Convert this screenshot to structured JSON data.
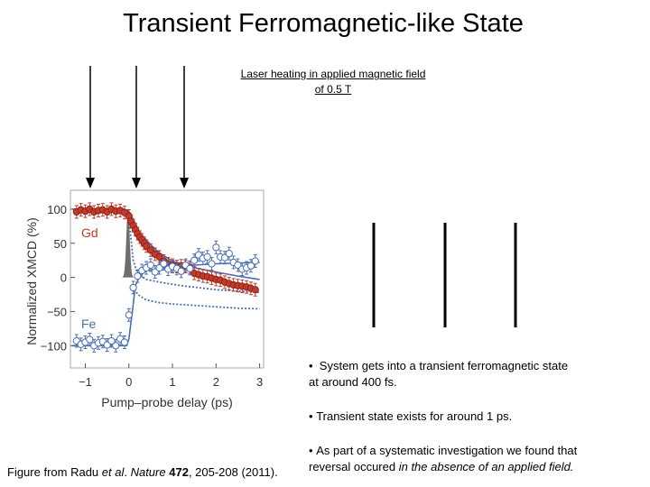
{
  "slide": {
    "title": "Transient Ferromagnetic-like State",
    "subnote_line1": "Laser heating in applied magnetic field",
    "subnote_line2": "of 0.5 T",
    "bullets": [
      {
        "marker": "•",
        "text_line1": "System gets into a transient ferromagnetic state",
        "text_line2": "at around 400 fs."
      },
      {
        "marker": "•",
        "text_line1": "Transient state exists for around 1 ps.",
        "text_line2": ""
      },
      {
        "marker": "•",
        "text_line1": "As part of a systematic investigation we found that",
        "text_line2_pre": "reversal occured ",
        "text_line2_em": "in the absence of an applied field."
      }
    ],
    "caption": {
      "pre": "Figure from Radu ",
      "etal": "et al",
      "mid": ". ",
      "journal": "Nature",
      "sp": " ",
      "volume": "472",
      "post": ", 205-208 (2011)."
    }
  },
  "chart_data": {
    "type": "scatter",
    "title": "",
    "xlabel": "Pump–probe delay (ps)",
    "ylabel": "Normalized XMCD (%)",
    "xlim": [
      -1.3,
      3.05
    ],
    "ylim": [
      -130,
      125
    ],
    "x_ticks": [
      -1,
      0,
      1,
      2,
      3
    ],
    "y_ticks": [
      100,
      50,
      0,
      -50,
      -100
    ],
    "x_tick_labels": [
      "−1",
      "0",
      "1",
      "2",
      "3"
    ],
    "y_tick_labels": [
      "100",
      "50",
      "0",
      "−50",
      "−100"
    ],
    "series_labels": [
      {
        "name": "Gd",
        "color": "#c43a2a"
      },
      {
        "name": "Fe",
        "color": "#4a6fb0"
      }
    ],
    "series": [
      {
        "name": "Gd",
        "color": "#c43a2a",
        "marker": "filled-circle",
        "points": [
          [
            -1.2,
            96
          ],
          [
            -1.1,
            99
          ],
          [
            -1.0,
            97
          ],
          [
            -0.9,
            100
          ],
          [
            -0.8,
            96
          ],
          [
            -0.7,
            98
          ],
          [
            -0.6,
            99
          ],
          [
            -0.5,
            96
          ],
          [
            -0.4,
            100
          ],
          [
            -0.3,
            97
          ],
          [
            -0.2,
            98
          ],
          [
            -0.1,
            95
          ],
          [
            0.0,
            90
          ],
          [
            0.05,
            82
          ],
          [
            0.1,
            76
          ],
          [
            0.15,
            70
          ],
          [
            0.2,
            64
          ],
          [
            0.25,
            59
          ],
          [
            0.3,
            55
          ],
          [
            0.35,
            50
          ],
          [
            0.4,
            46
          ],
          [
            0.5,
            40
          ],
          [
            0.6,
            34
          ],
          [
            0.7,
            30
          ],
          [
            0.8,
            24
          ],
          [
            0.9,
            20
          ],
          [
            1.0,
            18
          ],
          [
            1.1,
            16
          ],
          [
            1.2,
            17
          ],
          [
            1.3,
            16
          ],
          [
            1.4,
            15
          ],
          [
            1.5,
            6
          ],
          [
            1.6,
            4
          ],
          [
            1.7,
            2
          ],
          [
            1.8,
            1
          ],
          [
            1.9,
            -1
          ],
          [
            2.0,
            -3
          ],
          [
            2.1,
            -4
          ],
          [
            2.2,
            -7
          ],
          [
            2.3,
            -9
          ],
          [
            2.4,
            -11
          ],
          [
            2.5,
            -12
          ],
          [
            2.6,
            -13
          ],
          [
            2.7,
            -14
          ],
          [
            2.8,
            -16
          ],
          [
            2.9,
            -18
          ]
        ]
      },
      {
        "name": "Fe",
        "color": "#4a6fb0",
        "marker": "open-circle",
        "points": [
          [
            -1.2,
            -93
          ],
          [
            -1.1,
            -98
          ],
          [
            -1.0,
            -95
          ],
          [
            -0.9,
            -91
          ],
          [
            -0.8,
            -100
          ],
          [
            -0.7,
            -96
          ],
          [
            -0.6,
            -94
          ],
          [
            -0.5,
            -99
          ],
          [
            -0.4,
            -93
          ],
          [
            -0.3,
            -100
          ],
          [
            -0.2,
            -90
          ],
          [
            -0.1,
            -95
          ],
          [
            0.0,
            -55
          ],
          [
            0.1,
            -15
          ],
          [
            0.2,
            2
          ],
          [
            0.3,
            10
          ],
          [
            0.4,
            14
          ],
          [
            0.5,
            18
          ],
          [
            0.6,
            8
          ],
          [
            0.7,
            14
          ],
          [
            0.8,
            20
          ],
          [
            0.9,
            12
          ],
          [
            1.0,
            16
          ],
          [
            1.1,
            13
          ],
          [
            1.2,
            9
          ],
          [
            1.3,
            18
          ],
          [
            1.4,
            13
          ],
          [
            1.5,
            25
          ],
          [
            1.6,
            33
          ],
          [
            1.7,
            28
          ],
          [
            1.8,
            30
          ],
          [
            1.9,
            20
          ],
          [
            2.0,
            44
          ],
          [
            2.1,
            30
          ],
          [
            2.2,
            29
          ],
          [
            2.3,
            35
          ],
          [
            2.4,
            22
          ],
          [
            2.5,
            18
          ],
          [
            2.6,
            12
          ],
          [
            2.7,
            14
          ],
          [
            2.8,
            17
          ],
          [
            2.9,
            24
          ]
        ]
      }
    ],
    "fit_lines": [
      {
        "name": "Gd-fit",
        "color": "#4a6fb0",
        "style": "solid",
        "points": [
          [
            -1.3,
            100
          ],
          [
            -0.1,
            100
          ],
          [
            0.0,
            97
          ],
          [
            0.1,
            85
          ],
          [
            0.2,
            72
          ],
          [
            0.3,
            62
          ],
          [
            0.5,
            48
          ],
          [
            0.7,
            36
          ],
          [
            1.0,
            24
          ],
          [
            1.3,
            17
          ],
          [
            1.6,
            13
          ],
          [
            2.0,
            8
          ],
          [
            2.5,
            2
          ],
          [
            3.0,
            -3
          ]
        ]
      },
      {
        "name": "Gd-dotted",
        "color": "#4a6fb0",
        "style": "dotted",
        "points": [
          [
            -0.02,
            100
          ],
          [
            0.05,
            55
          ],
          [
            0.1,
            25
          ],
          [
            0.2,
            5
          ],
          [
            0.4,
            -3
          ],
          [
            0.8,
            -8
          ],
          [
            1.2,
            -12
          ],
          [
            1.6,
            -15
          ],
          [
            2.0,
            -18
          ],
          [
            2.5,
            -20
          ],
          [
            3.0,
            -22
          ]
        ]
      },
      {
        "name": "Fe-fit",
        "color": "#4a6fb0",
        "style": "solid",
        "points": [
          [
            -1.3,
            -100
          ],
          [
            -0.05,
            -100
          ],
          [
            0.0,
            -90
          ],
          [
            0.08,
            -50
          ],
          [
            0.15,
            -12
          ],
          [
            0.25,
            2
          ],
          [
            0.4,
            10
          ],
          [
            0.7,
            13
          ],
          [
            1.0,
            15
          ],
          [
            1.5,
            18
          ],
          [
            2.0,
            20
          ],
          [
            2.5,
            21
          ],
          [
            3.0,
            22
          ]
        ]
      },
      {
        "name": "Fe-dotted",
        "color": "#4a6fb0",
        "style": "dotted",
        "points": [
          [
            0.1,
            -12
          ],
          [
            0.2,
            -25
          ],
          [
            0.4,
            -33
          ],
          [
            0.7,
            -37
          ],
          [
            1.0,
            -39
          ],
          [
            1.5,
            -41
          ],
          [
            2.0,
            -43
          ],
          [
            2.5,
            -45
          ],
          [
            3.0,
            -46
          ]
        ]
      }
    ],
    "pump_pulse": {
      "center": -0.02,
      "width": 0.08,
      "height": 100,
      "color": "#555555"
    }
  }
}
